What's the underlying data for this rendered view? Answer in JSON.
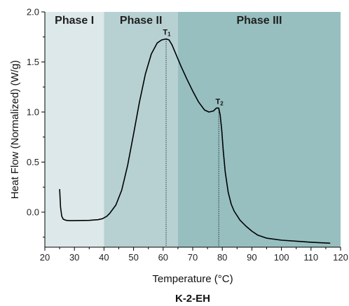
{
  "chart_data": {
    "type": "line",
    "caption": "K-2-EH",
    "xlabel": "Temperature (°C)",
    "ylabel": "Heat Flow (Normalized) (W/g)",
    "xlim": [
      20,
      120
    ],
    "ylim": [
      -0.35,
      2.0
    ],
    "xticks": [
      20,
      30,
      40,
      50,
      60,
      70,
      80,
      90,
      100,
      110,
      120
    ],
    "yticks": [
      0.0,
      0.5,
      1.0,
      1.5,
      2.0
    ],
    "ytick_labels": [
      "0.0",
      "0.5",
      "1.0",
      "1.5",
      "2.0"
    ],
    "grid": false,
    "regions": [
      {
        "label": "Phase I",
        "x_start": 20,
        "x_end": 40,
        "color": "#dce8e9"
      },
      {
        "label": "Phase II",
        "x_start": 40,
        "x_end": 65,
        "color": "#b7d1d2"
      },
      {
        "label": "Phase III",
        "x_start": 65,
        "x_end": 120,
        "color": "#97bfc0"
      }
    ],
    "annotations": [
      {
        "label": "T",
        "subscript": "1",
        "x": 61.0,
        "y": 1.73
      },
      {
        "label": "T",
        "subscript": "2",
        "x": 78.8,
        "y": 1.04
      }
    ],
    "series": [
      {
        "color": "#000000",
        "x": [
          25.0,
          25.3,
          25.7,
          26.2,
          27.0,
          28.0,
          30,
          35,
          38,
          39.5,
          41,
          42,
          44,
          46,
          48,
          50,
          52,
          54,
          56,
          58,
          59.5,
          61,
          62,
          63,
          64,
          66,
          68,
          70,
          72,
          74,
          75.5,
          77,
          78,
          78.8,
          79.3,
          79.8,
          80.3,
          81,
          82,
          83,
          84,
          86,
          88,
          90,
          92,
          95,
          100,
          105,
          110,
          116.5
        ],
        "y": [
          0.23,
          0.05,
          -0.04,
          -0.07,
          -0.08,
          -0.085,
          -0.085,
          -0.082,
          -0.075,
          -0.065,
          -0.04,
          -0.01,
          0.07,
          0.22,
          0.47,
          0.78,
          1.1,
          1.38,
          1.58,
          1.69,
          1.72,
          1.73,
          1.72,
          1.67,
          1.6,
          1.46,
          1.33,
          1.21,
          1.1,
          1.02,
          1.0,
          1.01,
          1.04,
          1.04,
          0.97,
          0.82,
          0.62,
          0.4,
          0.2,
          0.08,
          0.01,
          -0.08,
          -0.14,
          -0.19,
          -0.23,
          -0.26,
          -0.28,
          -0.29,
          -0.3,
          -0.31
        ]
      }
    ]
  }
}
